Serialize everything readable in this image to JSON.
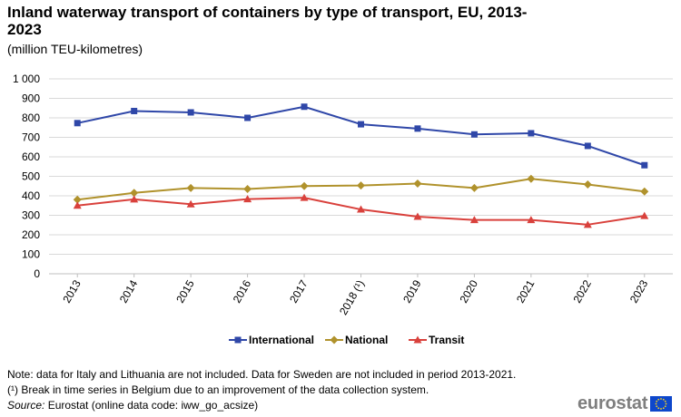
{
  "chart_data": {
    "type": "line",
    "title": "Inland waterway transport of containers by type of transport, EU, 2013-2023",
    "subtitle": "(million TEU-kilometres)",
    "categories": [
      "2013",
      "2014",
      "2015",
      "2016",
      "2017",
      "2018 (¹)",
      "2019",
      "2020",
      "2021",
      "2022",
      "2023"
    ],
    "ylim": [
      0,
      1000
    ],
    "yticks": [
      0,
      100,
      200,
      300,
      400,
      500,
      600,
      700,
      800,
      900,
      1000
    ],
    "ytick_labels": [
      "0",
      "100",
      "200",
      "300",
      "400",
      "500",
      "600",
      "700",
      "800",
      "900",
      "1 000"
    ],
    "grid": true,
    "legend_position": "bottom",
    "series": [
      {
        "name": "International",
        "color": "#2f47a8",
        "marker": "square",
        "values": [
          773,
          835,
          828,
          800,
          857,
          767,
          745,
          715,
          721,
          656,
          557
        ]
      },
      {
        "name": "National",
        "color": "#b0922c",
        "marker": "diamond",
        "values": [
          380,
          415,
          440,
          435,
          450,
          453,
          463,
          440,
          487,
          458,
          422
        ]
      },
      {
        "name": "Transit",
        "color": "#d9413c",
        "marker": "triangle",
        "values": [
          350,
          382,
          357,
          383,
          390,
          330,
          293,
          276,
          276,
          252,
          297
        ]
      }
    ]
  },
  "notes": {
    "line1": "Note: data for Italy  and Lithuania  are not included.  Data for Sweden are not included in period 2013-2021.",
    "line2": "(¹) Break in time series in Belgium due to an improvement of the data collection system.",
    "source_label": "Source:",
    "source_text": " Eurostat (online data code: iww_go_acsize)"
  },
  "logo": {
    "text": "eurostat",
    "flag_color": "#0e47cb",
    "star_color": "#ffd617"
  }
}
